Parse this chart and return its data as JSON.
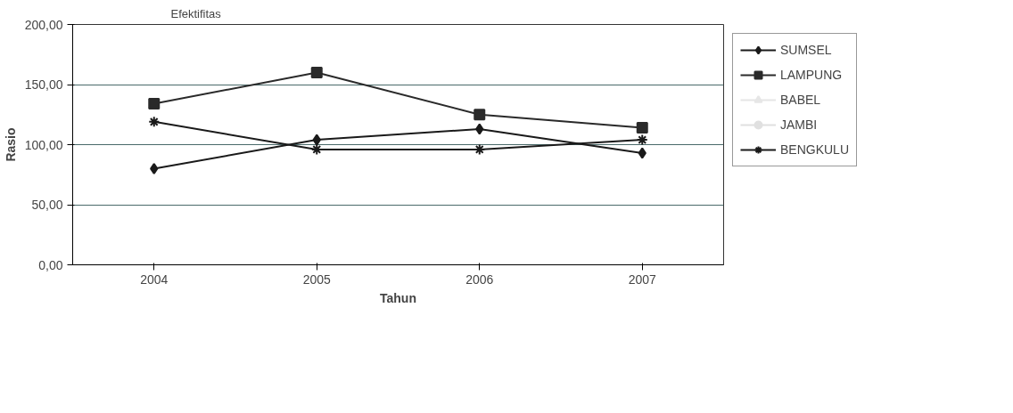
{
  "chart_data": {
    "type": "line",
    "title": "Efektifitas",
    "xlabel": "Tahun",
    "ylabel": "Rasio",
    "categories": [
      "2004",
      "2005",
      "2006",
      "2007"
    ],
    "series": [
      {
        "name": "SUMSEL",
        "color": "#1a1a1a",
        "marker": "diamond",
        "values": [
          80,
          104,
          113,
          93
        ]
      },
      {
        "name": "LAMPUNG",
        "color": "#2a2a2a",
        "marker": "square",
        "values": [
          134,
          160,
          125,
          114
        ]
      },
      {
        "name": "BABEL",
        "color": "#e6e6e6",
        "marker": "triangle",
        "values": [
          null,
          null,
          null,
          null
        ]
      },
      {
        "name": "JAMBI",
        "color": "#e0e0e0",
        "marker": "circle",
        "values": [
          null,
          null,
          null,
          null
        ]
      },
      {
        "name": "BENGKULU",
        "color": "#1a1a1a",
        "marker": "cross",
        "values": [
          119,
          96,
          96,
          104
        ]
      }
    ],
    "ylim": [
      0,
      200
    ],
    "yticks": [
      {
        "value": 0,
        "label": "0,00"
      },
      {
        "value": 50,
        "label": "50,00"
      },
      {
        "value": 100,
        "label": "100,00"
      },
      {
        "value": 150,
        "label": "150,00"
      },
      {
        "value": 200,
        "label": "200,00"
      }
    ],
    "grid": "y",
    "legend": "right"
  }
}
